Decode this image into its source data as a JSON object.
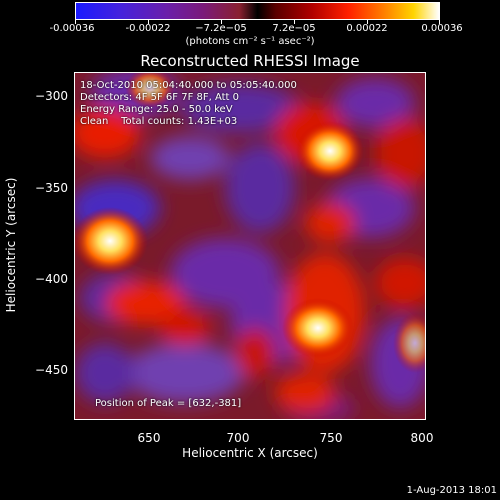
{
  "colorbar": {
    "ticks": [
      "-0.00036",
      "-0.00022",
      "−7.2e−05",
      "7.2e−05",
      "0.00022",
      "0.00036"
    ],
    "units": "(photons cm⁻² s⁻¹ asec⁻²)"
  },
  "title": "Reconstructed RHESSI Image",
  "info": {
    "line1": "18-Oct-2010 05:04:40.000 to 05:05:40.000",
    "line2": "Detectors: 4F 5F 6F 7F 8F, Att 0",
    "line3": "Energy Range: 25.0 - 50.0 keV",
    "line4": "Clean    Total counts: 1.43E+03"
  },
  "peak": "Position of Peak = [632,-381]",
  "axes": {
    "xlabel": "Heliocentric X (arcsec)",
    "ylabel": "Heliocentric Y (arcsec)",
    "xticks": [
      "650",
      "700",
      "750",
      "800"
    ],
    "yticks": [
      "−300",
      "−350",
      "−400",
      "−450"
    ]
  },
  "stamp": "1-Aug-2013 18:01",
  "colors": {
    "background": "#000000",
    "text": "#ffffff"
  }
}
